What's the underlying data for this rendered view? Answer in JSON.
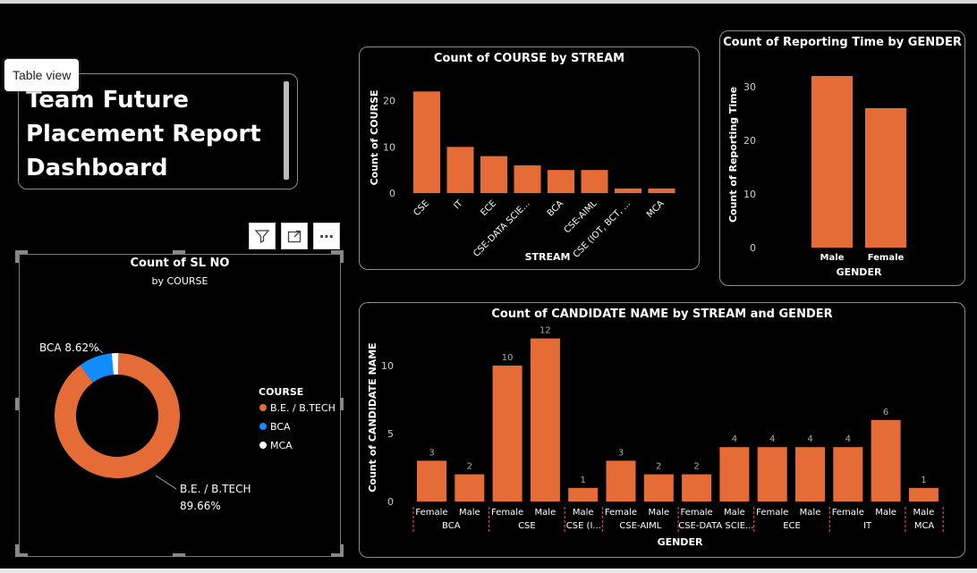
{
  "tooltip": "Table view",
  "title_card": {
    "text": "Team Future\nPlacement Report\nDashboard"
  },
  "toolbar": {
    "filter_icon": "filter-icon",
    "focus_icon": "focus-mode-icon",
    "more_icon": "more-options-icon",
    "more_label": "⋯"
  },
  "colors": {
    "orange": "#E66C37",
    "blue": "#118DFF",
    "white": "#FFFFFF",
    "bg": "#000000"
  },
  "chart_data": [
    {
      "type": "bar",
      "title": "Count of COURSE by STREAM",
      "xlabel": "STREAM",
      "ylabel": "Count of COURSE",
      "categories": [
        "CSE",
        "IT",
        "ECE",
        "CSE-DATA SCIE...",
        "BCA",
        "CSE-AIML",
        "CSE (IOT, BCT, ...",
        "MCA"
      ],
      "values": [
        22,
        10,
        8,
        6,
        5,
        5,
        1,
        1
      ],
      "yticks": [
        "0",
        "10",
        "20"
      ],
      "ylim": [
        0,
        24
      ]
    },
    {
      "type": "bar",
      "title": "Count of Reporting Time by GENDER",
      "xlabel": "GENDER",
      "ylabel": "Count of Reporting Time",
      "categories": [
        "Male",
        "Female"
      ],
      "values": [
        32,
        26
      ],
      "yticks": [
        "0",
        "10",
        "20",
        "30"
      ],
      "ylim": [
        0,
        35
      ]
    },
    {
      "type": "pie",
      "title": "Count of SL NO",
      "subtitle": "by COURSE",
      "legend_title": "COURSE",
      "slices": [
        {
          "name": "B.E. / B.TECH",
          "value": 89.66,
          "color": "#E66C37"
        },
        {
          "name": "BCA",
          "value": 8.62,
          "color": "#118DFF"
        },
        {
          "name": "MCA",
          "value": 1.72,
          "color": "#FFFFFF"
        }
      ],
      "labels": {
        "bca": "BCA 8.62%",
        "be_name": "B.E. / B.TECH",
        "be_pct": "89.66%"
      }
    },
    {
      "type": "bar",
      "title": "Count of CANDIDATE NAME by STREAM and GENDER",
      "xlabel": "GENDER",
      "ylabel": "Count of CANDIDATE NAME",
      "yticks": [
        "0",
        "5",
        "10"
      ],
      "ylim": [
        0,
        12.5
      ],
      "groups": [
        {
          "stream": "BCA",
          "bars": [
            {
              "gender": "Female",
              "value": 3
            },
            {
              "gender": "Male",
              "value": 2
            }
          ]
        },
        {
          "stream": "CSE",
          "bars": [
            {
              "gender": "Female",
              "value": 10
            },
            {
              "gender": "Male",
              "value": 12
            }
          ]
        },
        {
          "stream": "CSE (I...",
          "bars": [
            {
              "gender": "Male",
              "value": 1
            }
          ]
        },
        {
          "stream": "CSE-AIML",
          "bars": [
            {
              "gender": "Female",
              "value": 3
            },
            {
              "gender": "Male",
              "value": 2
            }
          ]
        },
        {
          "stream": "CSE-DATA SCIE...",
          "bars": [
            {
              "gender": "Female",
              "value": 2
            },
            {
              "gender": "Male",
              "value": 4
            }
          ]
        },
        {
          "stream": "ECE",
          "bars": [
            {
              "gender": "Female",
              "value": 4
            },
            {
              "gender": "Male",
              "value": 4
            }
          ]
        },
        {
          "stream": "IT",
          "bars": [
            {
              "gender": "Female",
              "value": 4
            },
            {
              "gender": "Male",
              "value": 6
            }
          ]
        },
        {
          "stream": "MCA",
          "bars": [
            {
              "gender": "Male",
              "value": 1
            }
          ]
        }
      ]
    }
  ]
}
